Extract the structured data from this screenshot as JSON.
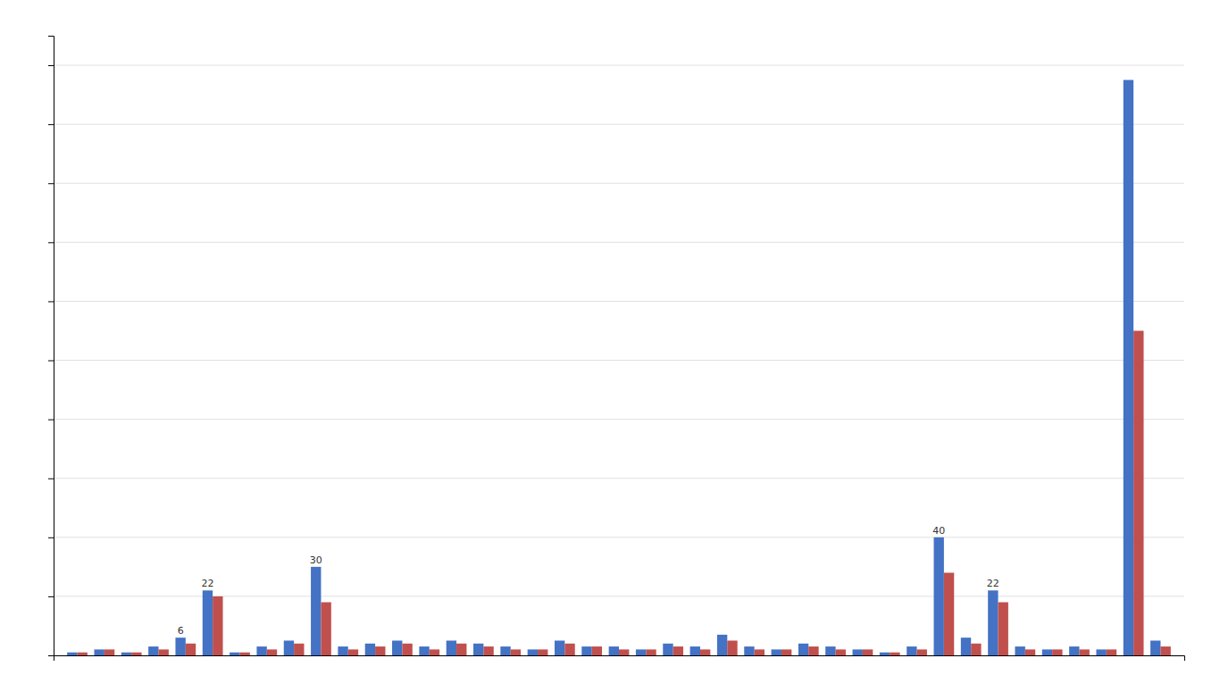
{
  "chart_data": {
    "type": "bar",
    "categories": [
      null,
      null,
      null,
      null,
      null,
      null,
      null,
      null,
      null,
      null,
      null,
      null,
      null,
      null,
      null,
      null,
      null,
      null,
      null,
      null,
      null,
      null,
      null,
      null,
      null,
      null,
      null,
      null,
      null,
      null,
      null,
      null,
      null,
      null,
      null,
      null,
      null,
      null,
      null,
      null,
      null
    ],
    "series": [
      {
        "color": "#4472C4",
        "values": [
          1,
          2,
          1,
          3,
          6,
          22,
          1,
          3,
          5,
          30,
          3,
          4,
          5,
          3,
          5,
          4,
          3,
          2,
          5,
          3,
          3,
          2,
          4,
          3,
          7,
          3,
          2,
          4,
          3,
          2,
          1,
          3,
          40,
          6,
          22,
          3,
          2,
          3,
          2,
          195,
          5
        ],
        "value_labels": [
          null,
          null,
          null,
          null,
          "6",
          "22",
          null,
          null,
          null,
          "30",
          null,
          null,
          null,
          null,
          null,
          null,
          null,
          null,
          null,
          null,
          null,
          null,
          null,
          null,
          null,
          null,
          null,
          null,
          null,
          null,
          null,
          null,
          "40",
          null,
          "22",
          null,
          null,
          null,
          null,
          null,
          null
        ]
      },
      {
        "color": "#C0504D",
        "values": [
          1,
          2,
          1,
          2,
          4,
          20,
          1,
          2,
          4,
          18,
          2,
          3,
          4,
          2,
          4,
          3,
          2,
          2,
          4,
          3,
          2,
          2,
          3,
          2,
          5,
          2,
          2,
          3,
          2,
          2,
          1,
          2,
          28,
          4,
          18,
          2,
          2,
          2,
          2,
          110,
          3
        ]
      }
    ],
    "ylim": [
      0,
      210
    ],
    "yticks": [
      0,
      20,
      40,
      60,
      80,
      100,
      120,
      140,
      160,
      180,
      200
    ],
    "grid": true,
    "tick_labels": false
  }
}
